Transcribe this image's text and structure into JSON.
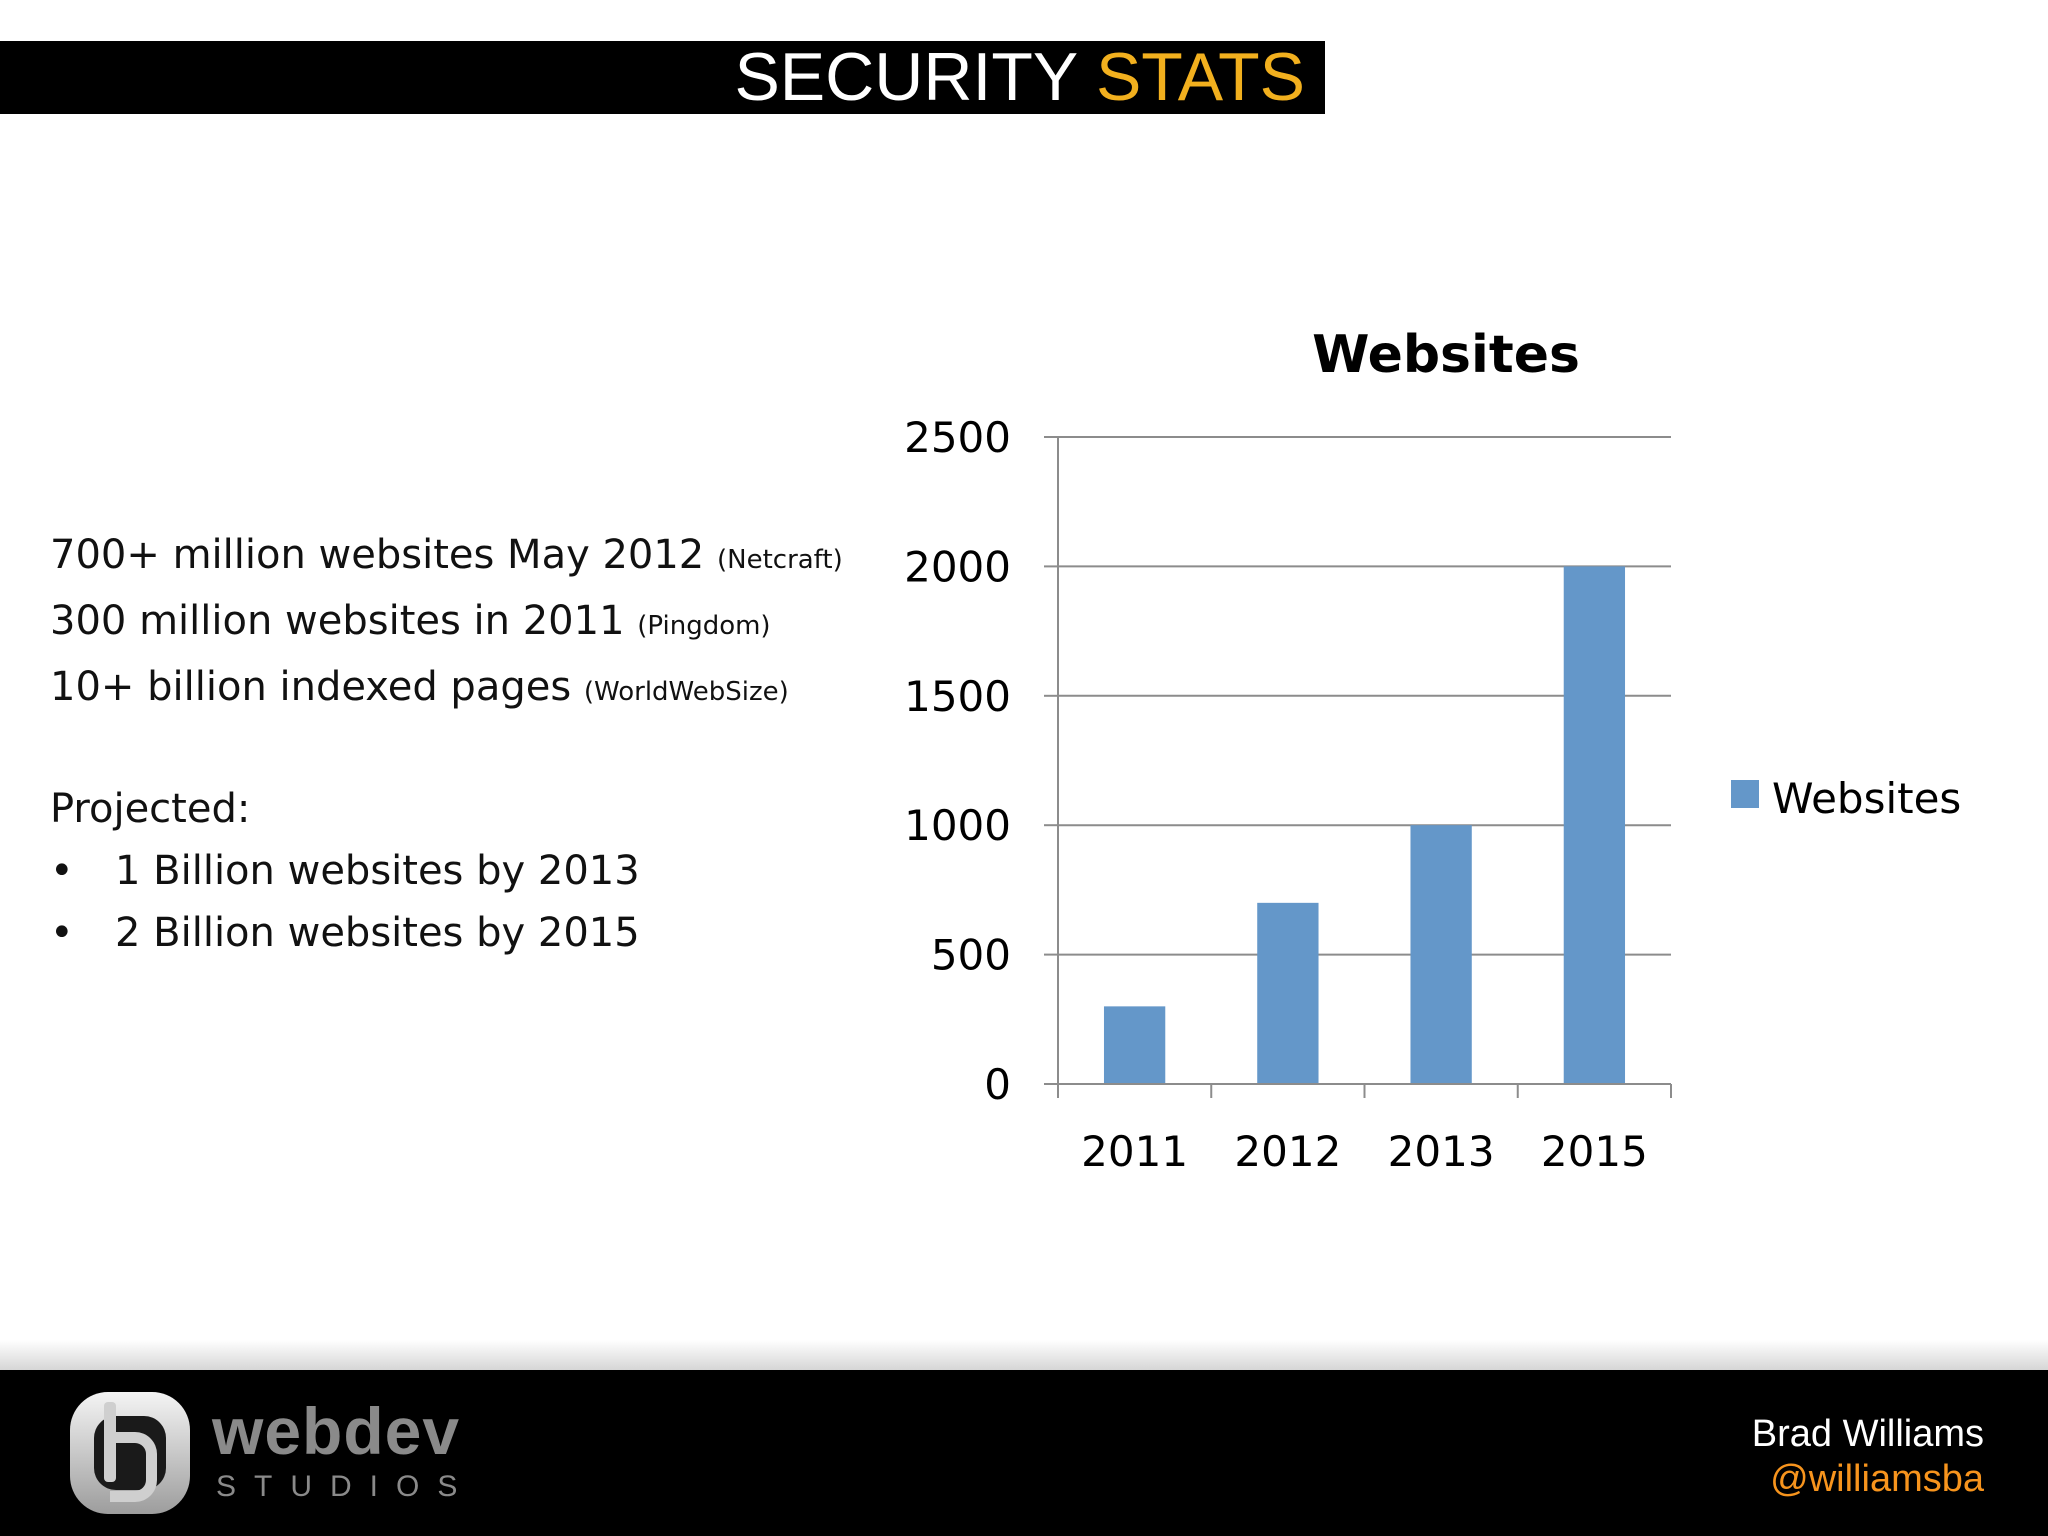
{
  "slide": {
    "title_main": "SECURITY",
    "title_accent": "STATS",
    "title_accent_color": "#f2b01e"
  },
  "stats": {
    "lines": [
      {
        "text": "700+ million websites May 2012",
        "source": "(Netcraft)"
      },
      {
        "text": "300 million websites in 2011",
        "source": "(Pingdom)"
      },
      {
        "text": "10+ billion indexed pages",
        "source": "(WorldWebSize)"
      }
    ],
    "projected_label": "Projected:",
    "bullet_glyph": "•",
    "bullets": [
      "1 Billion websites by 2013",
      "2 Billion websites by 2015"
    ]
  },
  "chart_data": {
    "type": "bar",
    "title": "Websites",
    "categories": [
      "2011",
      "2012",
      "2013",
      "2015"
    ],
    "series": [
      {
        "name": "Websites",
        "values": [
          300,
          700,
          1000,
          2000
        ],
        "color": "#6497c9"
      }
    ],
    "ylim": [
      0,
      2500
    ],
    "yticks": [
      0,
      500,
      1000,
      1500,
      2000,
      2500
    ],
    "grid": true,
    "legend": "right"
  },
  "footer": {
    "logo_word": "webdev",
    "logo_sub": "STUDIOS",
    "author_name": "Brad Williams",
    "author_handle": "@williamsba",
    "handle_color": "#f7941d"
  }
}
